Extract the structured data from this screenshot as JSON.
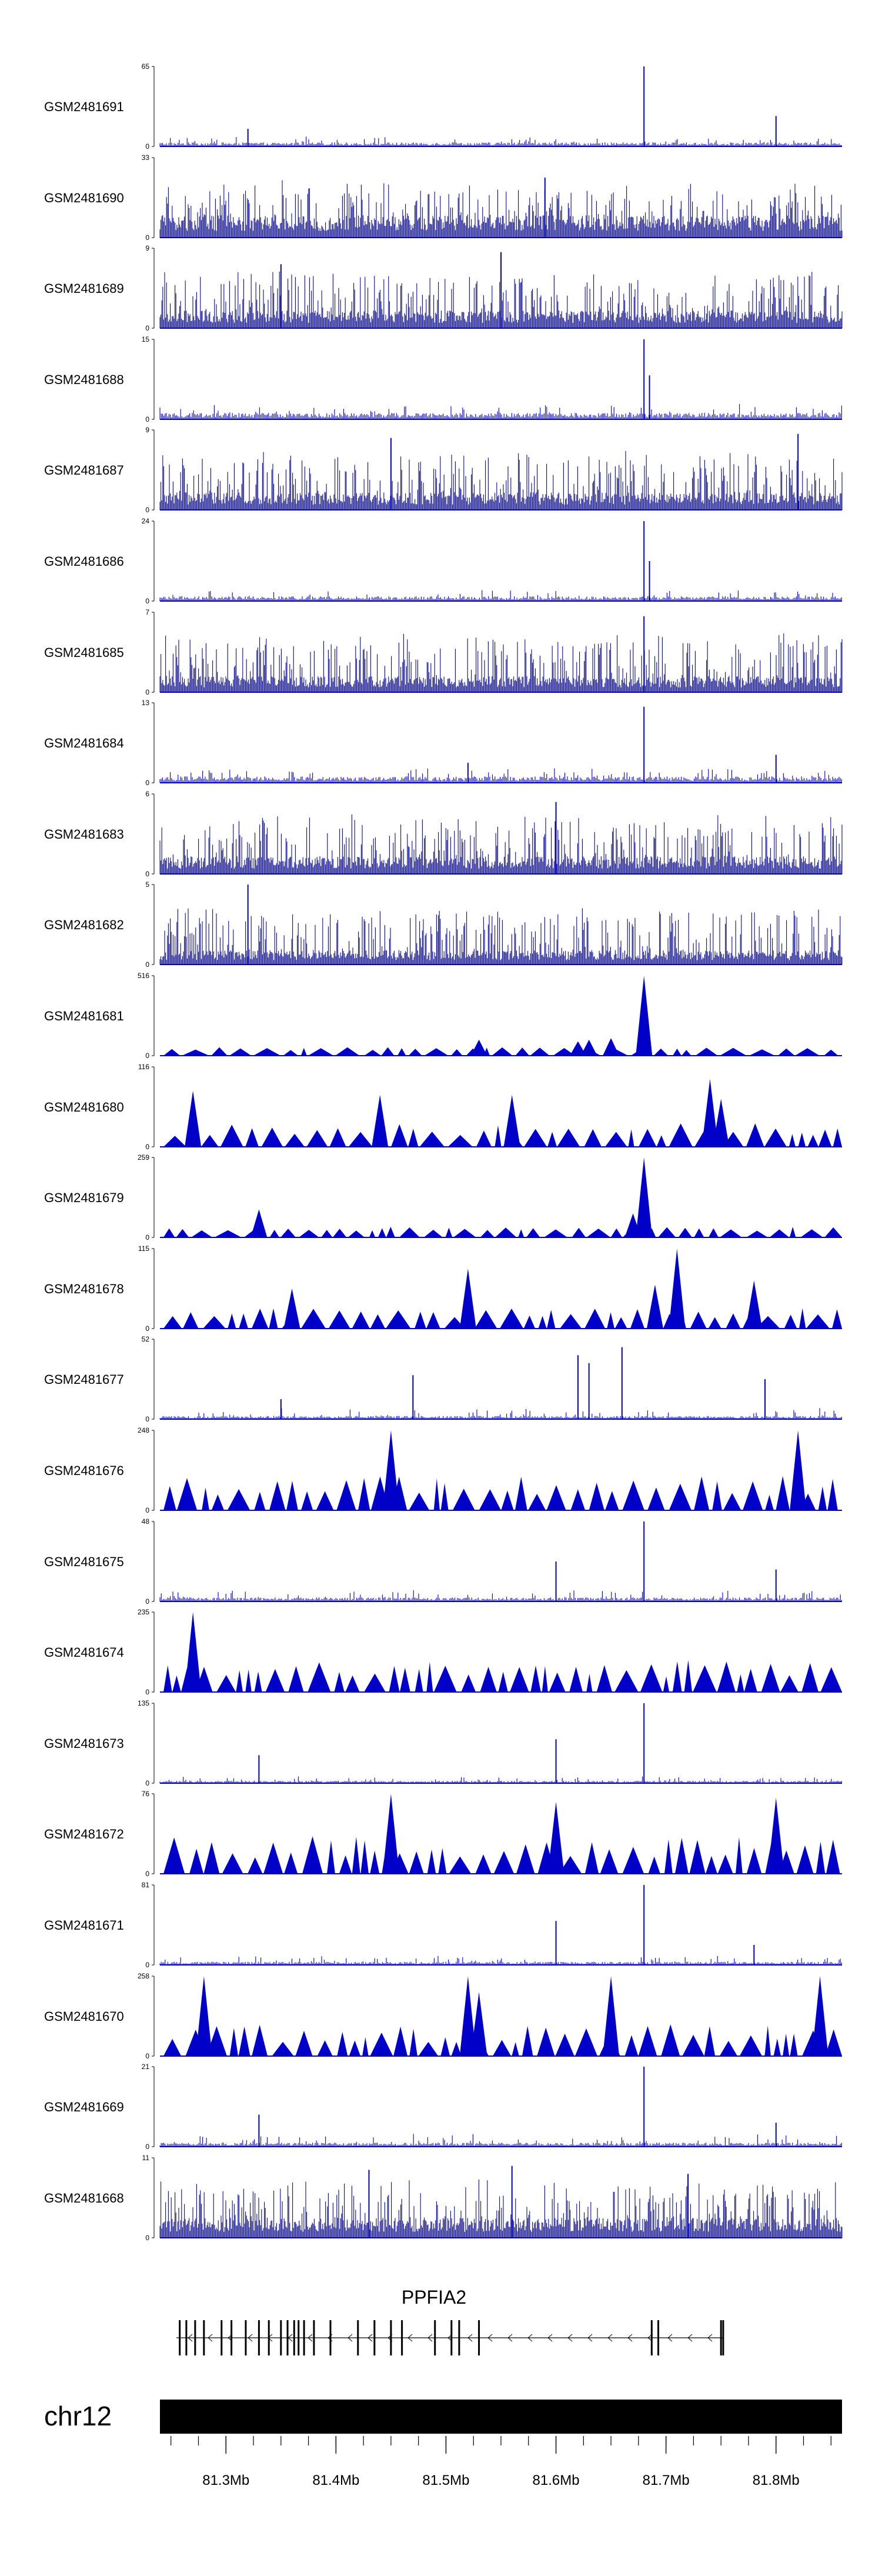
{
  "chart_data": {
    "type": "genome-track",
    "title": "",
    "chromosome": "chr12",
    "gene": {
      "name": "PPFIA2",
      "start": 81.255,
      "end": 81.752,
      "strand": "-"
    },
    "xlim": [
      81.24,
      81.86
    ],
    "xtick_labels": [
      "81.3Mb",
      "81.4Mb",
      "81.5Mb",
      "81.6Mb",
      "81.7Mb",
      "81.8Mb"
    ],
    "xtick_values": [
      81.3,
      81.4,
      81.5,
      81.6,
      81.7,
      81.8
    ],
    "tracks": [
      {
        "name": "GSM2481691",
        "ymax": "65",
        "style": "bars",
        "base": 0.05,
        "noise": 0.08,
        "spikes": [
          [
            81.68,
            1.0
          ],
          [
            81.8,
            0.38
          ],
          [
            81.32,
            0.22
          ]
        ]
      },
      {
        "name": "GSM2481690",
        "ymax": "33",
        "style": "dense",
        "base": 0.28,
        "noise": 0.45,
        "spikes": [
          [
            81.59,
            0.75
          ]
        ]
      },
      {
        "name": "GSM2481689",
        "ymax": "9",
        "style": "dense",
        "base": 0.22,
        "noise": 0.55,
        "spikes": [
          [
            81.55,
            0.95
          ],
          [
            81.35,
            0.8
          ]
        ]
      },
      {
        "name": "GSM2481688",
        "ymax": "15",
        "style": "bars",
        "base": 0.08,
        "noise": 0.12,
        "spikes": [
          [
            81.68,
            1.0
          ],
          [
            81.685,
            0.55
          ]
        ]
      },
      {
        "name": "GSM2481687",
        "ymax": "9",
        "style": "dense",
        "base": 0.22,
        "noise": 0.55,
        "spikes": [
          [
            81.45,
            0.9
          ],
          [
            81.82,
            0.95
          ]
        ]
      },
      {
        "name": "GSM2481686",
        "ymax": "24",
        "style": "bars",
        "base": 0.06,
        "noise": 0.1,
        "spikes": [
          [
            81.68,
            1.0
          ],
          [
            81.685,
            0.5
          ]
        ]
      },
      {
        "name": "GSM2481685",
        "ymax": "7",
        "style": "dense",
        "base": 0.2,
        "noise": 0.55,
        "spikes": [
          [
            81.68,
            0.95
          ]
        ]
      },
      {
        "name": "GSM2481684",
        "ymax": "13",
        "style": "bars",
        "base": 0.08,
        "noise": 0.12,
        "spikes": [
          [
            81.68,
            0.95
          ],
          [
            81.8,
            0.35
          ],
          [
            81.52,
            0.25
          ]
        ]
      },
      {
        "name": "GSM2481683",
        "ymax": "6",
        "style": "dense",
        "base": 0.22,
        "noise": 0.55,
        "spikes": [
          [
            81.6,
            0.9
          ]
        ]
      },
      {
        "name": "GSM2481682",
        "ymax": "5",
        "style": "dense",
        "base": 0.18,
        "noise": 0.55,
        "spikes": [
          [
            81.32,
            1.0
          ]
        ]
      },
      {
        "name": "GSM2481681",
        "ymax": "516",
        "style": "tri",
        "base": 0.0,
        "noise": 0.08,
        "spikes": [
          [
            81.68,
            1.0
          ],
          [
            81.53,
            0.2
          ],
          [
            81.62,
            0.18
          ],
          [
            81.63,
            0.2
          ],
          [
            81.65,
            0.22
          ]
        ]
      },
      {
        "name": "GSM2481680",
        "ymax": "116",
        "style": "tri",
        "base": 0.0,
        "noise": 0.35,
        "spikes": [
          [
            81.27,
            0.7
          ],
          [
            81.44,
            0.65
          ],
          [
            81.56,
            0.65
          ],
          [
            81.74,
            0.85
          ],
          [
            81.75,
            0.6
          ]
        ]
      },
      {
        "name": "GSM2481679",
        "ymax": "259",
        "style": "tri",
        "base": 0.0,
        "noise": 0.12,
        "spikes": [
          [
            81.68,
            1.0
          ],
          [
            81.33,
            0.35
          ],
          [
            81.67,
            0.3
          ]
        ]
      },
      {
        "name": "GSM2481678",
        "ymax": "115",
        "style": "tri",
        "base": 0.0,
        "noise": 0.3,
        "spikes": [
          [
            81.71,
            1.0
          ],
          [
            81.36,
            0.5
          ],
          [
            81.52,
            0.75
          ],
          [
            81.78,
            0.6
          ],
          [
            81.69,
            0.55
          ]
        ]
      },
      {
        "name": "GSM2481677",
        "ymax": "52",
        "style": "bars",
        "base": 0.04,
        "noise": 0.1,
        "spikes": [
          [
            81.66,
            0.9
          ],
          [
            81.62,
            0.8
          ],
          [
            81.63,
            0.7
          ],
          [
            81.47,
            0.55
          ],
          [
            81.79,
            0.5
          ],
          [
            81.35,
            0.25
          ]
        ]
      },
      {
        "name": "GSM2481676",
        "ymax": "248",
        "style": "tri",
        "base": 0.0,
        "noise": 0.55,
        "spikes": [
          [
            81.45,
            1.0
          ],
          [
            81.82,
            1.0
          ]
        ]
      },
      {
        "name": "GSM2481675",
        "ymax": "48",
        "style": "bars",
        "base": 0.05,
        "noise": 0.1,
        "spikes": [
          [
            81.68,
            1.0
          ],
          [
            81.6,
            0.5
          ],
          [
            81.8,
            0.4
          ]
        ]
      },
      {
        "name": "GSM2481674",
        "ymax": "235",
        "style": "tri",
        "base": 0.0,
        "noise": 0.5,
        "spikes": [
          [
            81.27,
            1.0
          ]
        ]
      },
      {
        "name": "GSM2481673",
        "ymax": "135",
        "style": "bars",
        "base": 0.03,
        "noise": 0.06,
        "spikes": [
          [
            81.68,
            1.0
          ],
          [
            81.6,
            0.55
          ],
          [
            81.33,
            0.35
          ]
        ]
      },
      {
        "name": "GSM2481672",
        "ymax": "76",
        "style": "tri",
        "base": 0.0,
        "noise": 0.6,
        "spikes": [
          [
            81.45,
            1.0
          ],
          [
            81.6,
            0.9
          ],
          [
            81.8,
            0.95
          ]
        ]
      },
      {
        "name": "GSM2481671",
        "ymax": "81",
        "style": "bars",
        "base": 0.04,
        "noise": 0.08,
        "spikes": [
          [
            81.68,
            1.0
          ],
          [
            81.6,
            0.55
          ],
          [
            81.78,
            0.25
          ]
        ]
      },
      {
        "name": "GSM2481670",
        "ymax": "258",
        "style": "tri",
        "base": 0.0,
        "noise": 0.5,
        "spikes": [
          [
            81.28,
            1.0
          ],
          [
            81.52,
            1.0
          ],
          [
            81.53,
            0.8
          ],
          [
            81.65,
            1.0
          ],
          [
            81.84,
            1.0
          ]
        ]
      },
      {
        "name": "GSM2481669",
        "ymax": "21",
        "style": "bars",
        "base": 0.05,
        "noise": 0.12,
        "spikes": [
          [
            81.68,
            1.0
          ],
          [
            81.33,
            0.4
          ],
          [
            81.8,
            0.3
          ]
        ]
      },
      {
        "name": "GSM2481668",
        "ymax": "11",
        "style": "dense",
        "base": 0.25,
        "noise": 0.5,
        "spikes": [
          [
            81.43,
            0.85
          ],
          [
            81.56,
            0.9
          ],
          [
            81.72,
            0.8
          ]
        ]
      }
    ],
    "ymin_label": "0",
    "colors": {
      "signal": "#0000c8",
      "dense": "#0b0b8a",
      "axis": "#000000",
      "ideogram": "#000000",
      "gene": "#000000"
    }
  }
}
